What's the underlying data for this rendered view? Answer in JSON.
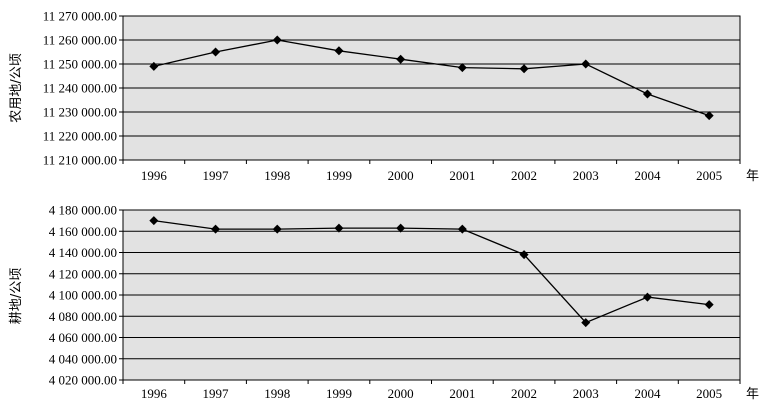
{
  "chart_data": [
    {
      "type": "line",
      "ylabel": "农用地/公顷",
      "xunit": "年",
      "categories": [
        "1996",
        "1997",
        "1998",
        "1999",
        "2000",
        "2001",
        "2002",
        "2003",
        "2004",
        "2005"
      ],
      "values": [
        11249000,
        11255000,
        11260000,
        11255500,
        11252000,
        11248500,
        11248000,
        11250000,
        11237500,
        11228500
      ],
      "ylim": [
        11210000,
        11270000
      ],
      "yticks": [
        "11 210 000.00",
        "11 220 000.00",
        "11 230 000.00",
        "11 240 000.00",
        "11 250 000.00",
        "11 260 000.00",
        "11 270 000.00"
      ],
      "grid": true
    },
    {
      "type": "line",
      "ylabel": "耕地/公顷",
      "xunit": "年",
      "categories": [
        "1996",
        "1997",
        "1998",
        "1999",
        "2000",
        "2001",
        "2002",
        "2003",
        "2004",
        "2005"
      ],
      "values": [
        4170000,
        4162000,
        4162000,
        4163000,
        4163000,
        4162000,
        4138000,
        4074000,
        4098000,
        4091000
      ],
      "ylim": [
        4020000,
        4180000
      ],
      "yticks": [
        "4 020 000.00",
        "4 040 000.00",
        "4 060 000.00",
        "4 080 000.00",
        "4 100 000.00",
        "4 120 000.00",
        "4 140 000.00",
        "4 160 000.00",
        "4 180 000.00"
      ],
      "grid": true
    }
  ]
}
